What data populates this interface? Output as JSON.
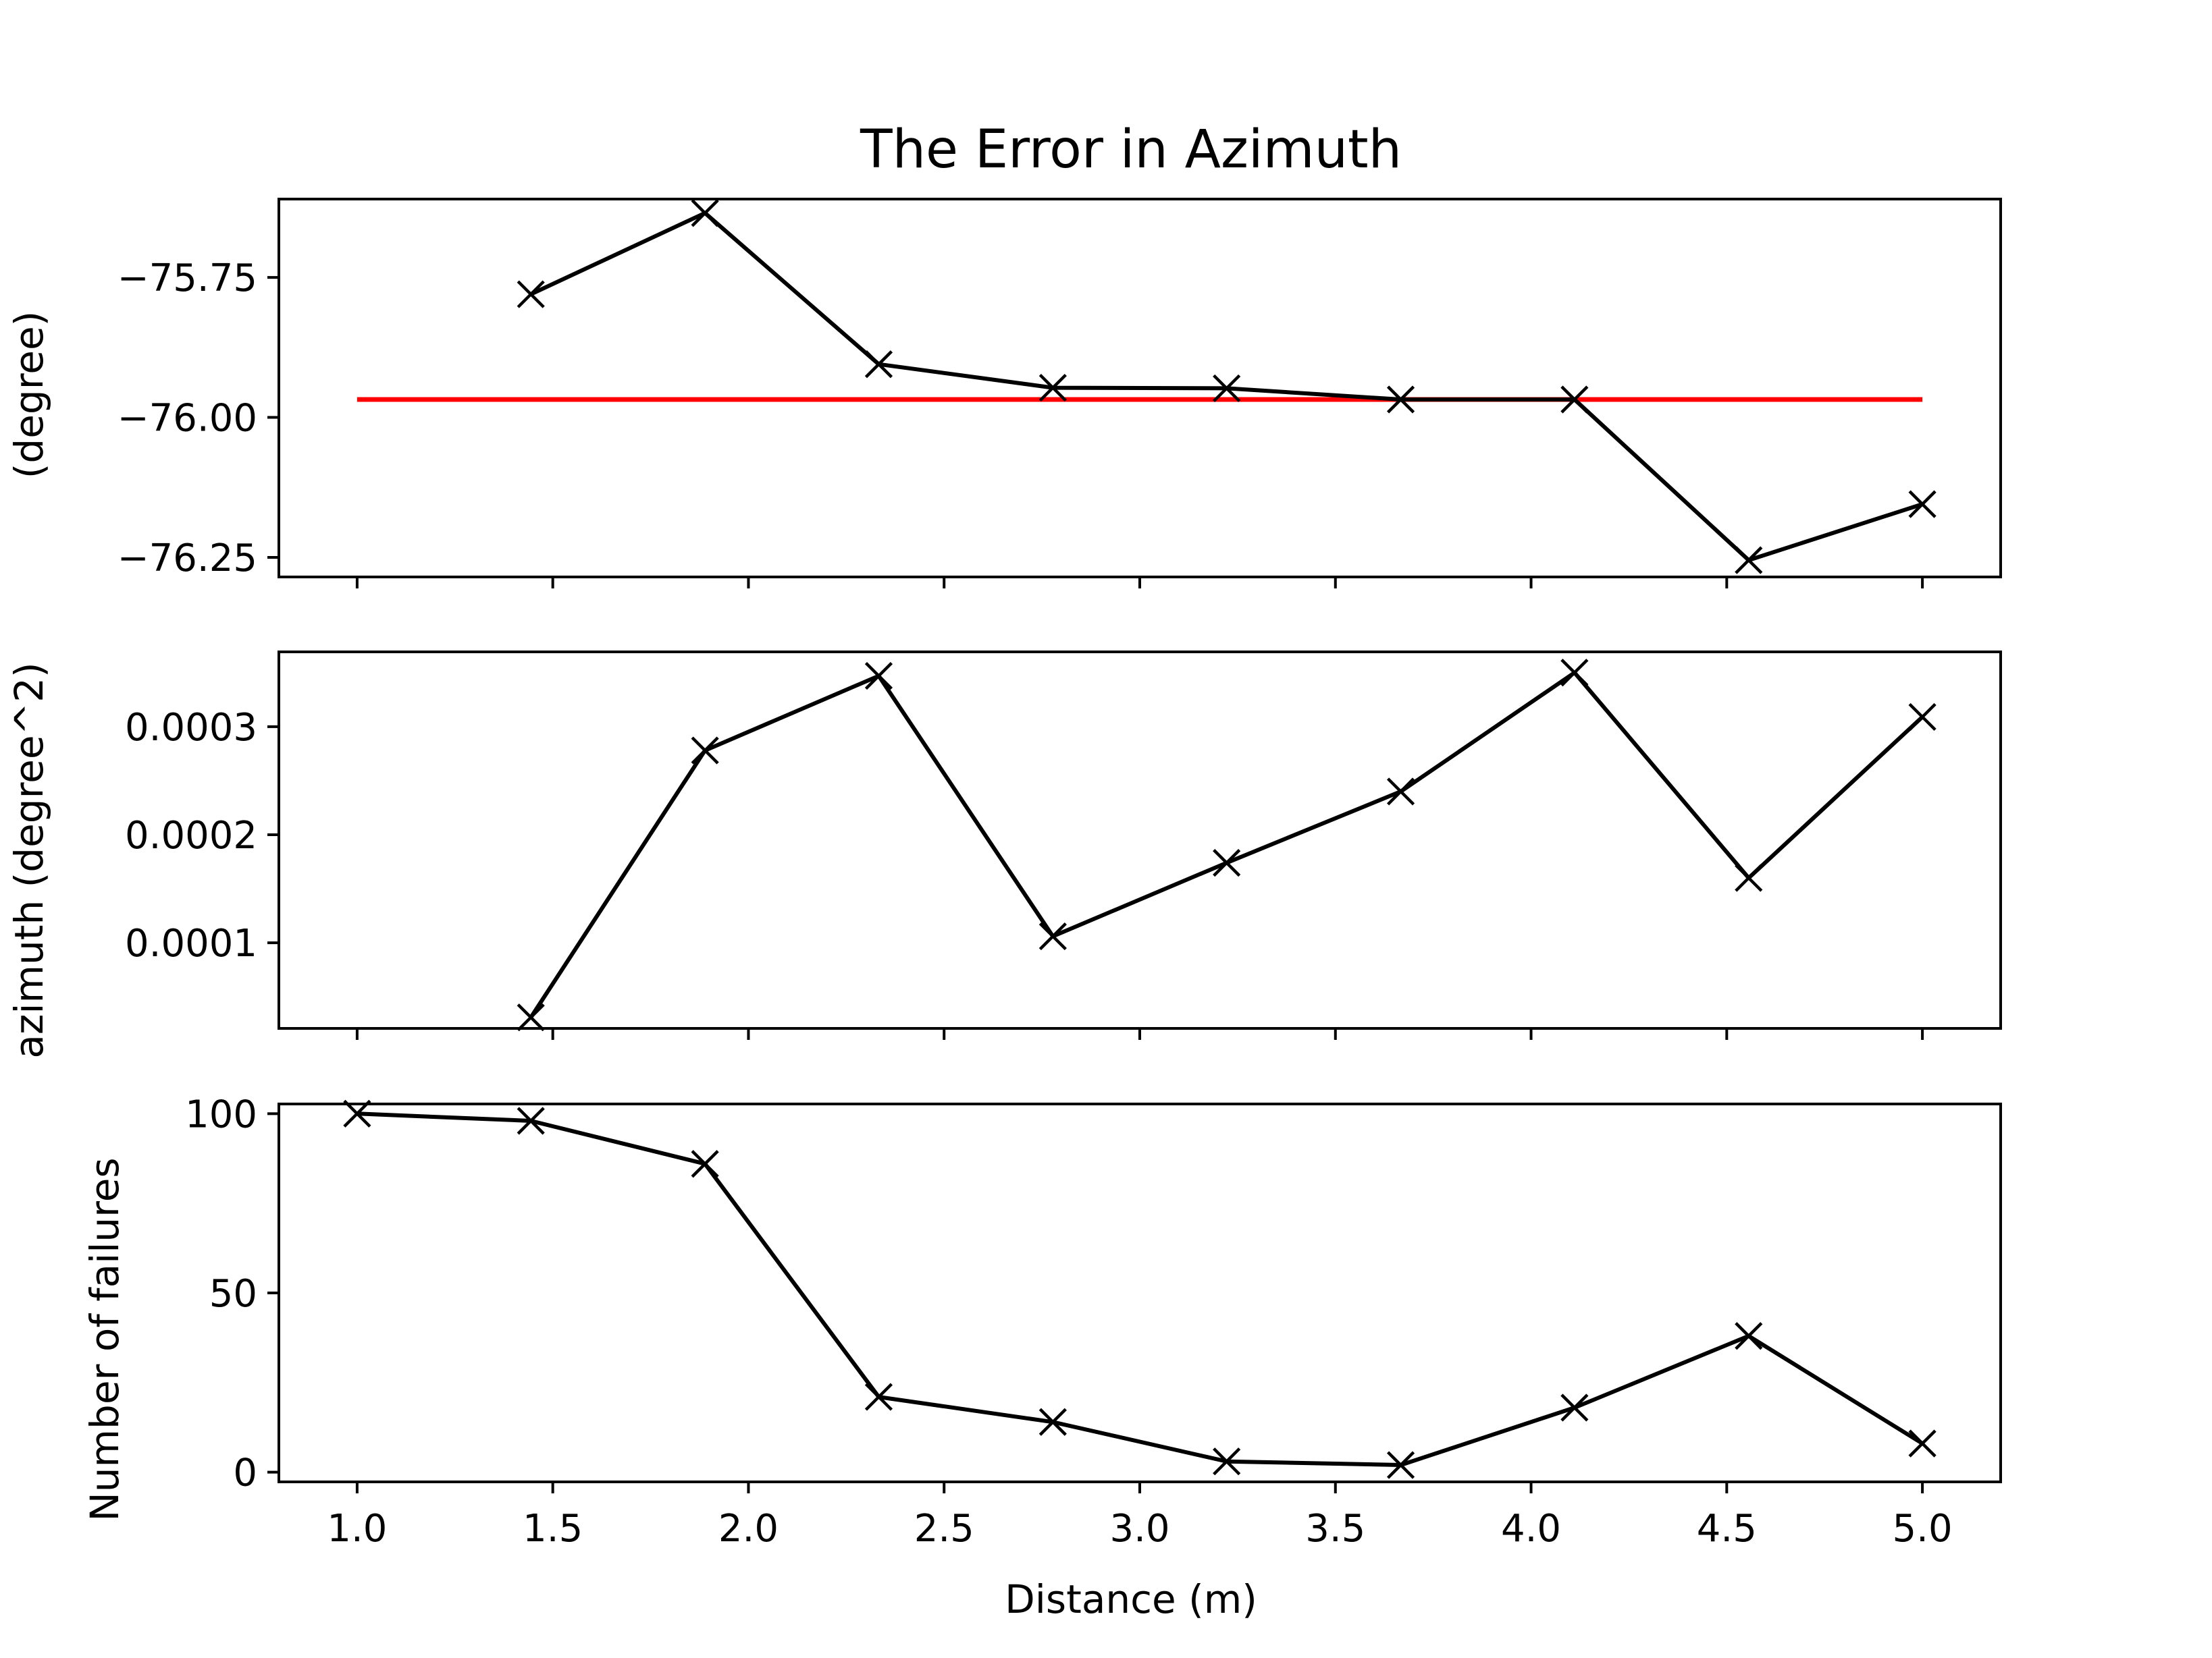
{
  "chart_data": {
    "type": "line",
    "title": "The Error in Azimuth",
    "xlabel": "Distance (m)",
    "ylabel_shared": "azimuth (degree^2)",
    "xlim": [
      0.8,
      5.2
    ],
    "xticks": [
      1.0,
      1.5,
      2.0,
      2.5,
      3.0,
      3.5,
      4.0,
      4.5,
      5.0
    ],
    "xtick_labels": [
      "1.0",
      "1.5",
      "2.0",
      "2.5",
      "3.0",
      "3.5",
      "4.0",
      "4.5",
      "5.0"
    ],
    "series_color": "#000000",
    "reference_color": "#ff0000",
    "marker": "x",
    "subplots": [
      {
        "id": "mean",
        "ylabel": "(degree)",
        "ylim": [
          -76.285,
          -75.61
        ],
        "yticks": [
          -75.75,
          -76.0,
          -76.25
        ],
        "ytick_labels": [
          "−75.75",
          "−76.00",
          "−76.25"
        ],
        "x": [
          1.444,
          1.889,
          2.333,
          2.778,
          3.222,
          3.667,
          4.111,
          4.556,
          5.0
        ],
        "y": [
          -75.78,
          -75.635,
          -75.905,
          -75.947,
          -75.948,
          -75.968,
          -75.968,
          -76.255,
          -76.155
        ],
        "reference": {
          "x": [
            1.0,
            5.0
          ],
          "y": -75.968
        }
      },
      {
        "id": "variance",
        "ylabel": "",
        "ylim": [
          2.08e-05,
          0.0003692
        ],
        "yticks": [
          0.0001,
          0.0002,
          0.0003
        ],
        "ytick_labels": [
          "0.0001",
          "0.0002",
          "0.0003"
        ],
        "x": [
          1.444,
          1.889,
          2.333,
          2.778,
          3.222,
          3.667,
          4.111,
          4.556,
          5.0
        ],
        "y": [
          3.1e-05,
          0.000278,
          0.000347,
          0.000106,
          0.000174,
          0.00024,
          0.00035,
          0.00016,
          0.000309
        ]
      },
      {
        "id": "failures",
        "ylabel": "Number of failures",
        "ylim": [
          -2.7,
          102.7
        ],
        "yticks": [
          0,
          50,
          100
        ],
        "ytick_labels": [
          "0",
          "50",
          "100"
        ],
        "x": [
          1.0,
          1.444,
          1.889,
          2.333,
          2.778,
          3.222,
          3.667,
          4.111,
          4.556,
          5.0
        ],
        "y": [
          100,
          98,
          86,
          21,
          14,
          3,
          2,
          18,
          38,
          8
        ]
      }
    ]
  }
}
